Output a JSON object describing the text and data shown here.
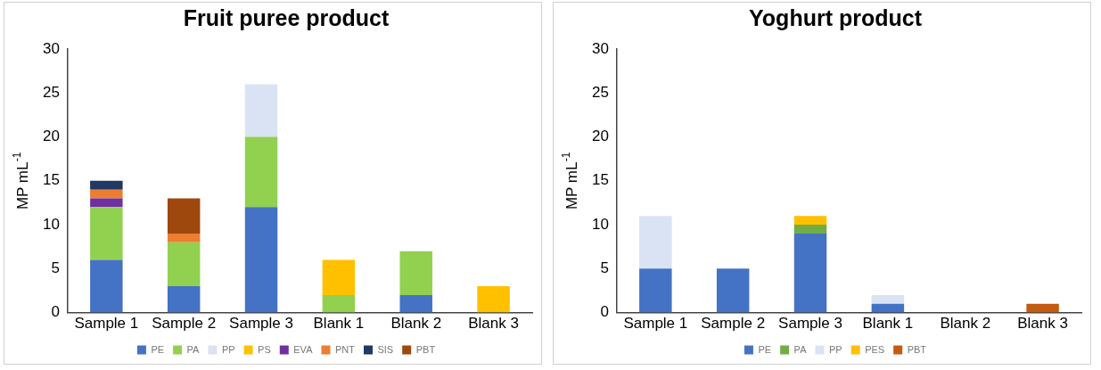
{
  "chart_data": [
    {
      "type": "bar",
      "title": "Fruit puree product",
      "ylabel": "MP mL$^{-1}$",
      "categories": [
        "Sample 1",
        "Sample 2",
        "Sample 3",
        "Blank 1",
        "Blank 2",
        "Blank 3"
      ],
      "stacked": true,
      "ylim": [
        0,
        30
      ],
      "yticks": [
        0,
        5,
        10,
        15,
        20,
        25,
        30
      ],
      "grid": false,
      "legend": "bottom",
      "series": [
        {
          "name": "PE",
          "color": "#4472c4",
          "values": [
            6,
            3,
            12,
            0,
            2,
            0
          ]
        },
        {
          "name": "PA",
          "color": "#92d050",
          "values": [
            6,
            5,
            8,
            2,
            5,
            0
          ]
        },
        {
          "name": "PP",
          "color": "#dae3f3",
          "values": [
            0,
            0,
            6,
            0,
            0,
            0
          ]
        },
        {
          "name": "PS",
          "color": "#ffc000",
          "values": [
            0,
            0,
            0,
            4,
            0,
            3
          ]
        },
        {
          "name": "EVA",
          "color": "#7030a0",
          "values": [
            1,
            0,
            0,
            0,
            0,
            0
          ]
        },
        {
          "name": "PNT",
          "color": "#ed7d31",
          "values": [
            1,
            1,
            0,
            0,
            0,
            0
          ]
        },
        {
          "name": "SIS",
          "color": "#203864",
          "values": [
            1,
            0,
            0,
            0,
            0,
            0
          ]
        },
        {
          "name": "PBT",
          "color": "#9e480e",
          "values": [
            0,
            4,
            0,
            0,
            0,
            0
          ]
        }
      ]
    },
    {
      "type": "bar",
      "title": "Yoghurt product",
      "ylabel": "MP mL$^{-1}$",
      "categories": [
        "Sample 1",
        "Sample 2",
        "Sample 3",
        "Blank 1",
        "Blank 2",
        "Blank 3"
      ],
      "stacked": true,
      "ylim": [
        0,
        30
      ],
      "yticks": [
        0,
        5,
        10,
        15,
        20,
        25,
        30
      ],
      "grid": false,
      "legend": "bottom",
      "series": [
        {
          "name": "PE",
          "color": "#4472c4",
          "values": [
            5,
            5,
            9,
            1,
            0,
            0
          ]
        },
        {
          "name": "PA",
          "color": "#70ad47",
          "values": [
            0,
            0,
            1,
            0,
            0,
            0
          ]
        },
        {
          "name": "PP",
          "color": "#dae3f3",
          "values": [
            6,
            0,
            0,
            1,
            0,
            0
          ]
        },
        {
          "name": "PES",
          "color": "#ffc000",
          "values": [
            0,
            0,
            1,
            0,
            0,
            0
          ]
        },
        {
          "name": "PBT",
          "color": "#c55a11",
          "values": [
            0,
            0,
            0,
            0,
            0,
            1
          ]
        }
      ]
    }
  ]
}
